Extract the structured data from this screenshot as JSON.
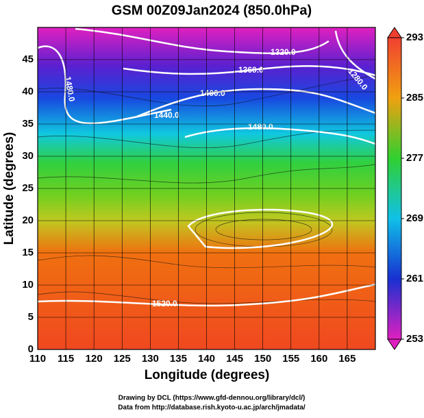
{
  "title": "GSM 00Z09Jan2024 (850.0hPa)",
  "x_axis": {
    "label": "Longitude (degrees)",
    "lim": [
      110,
      170
    ],
    "ticks": [
      110,
      115,
      120,
      125,
      130,
      135,
      140,
      145,
      150,
      155,
      160,
      165
    ]
  },
  "y_axis": {
    "label": "Latitude  (degrees)",
    "lim": [
      0,
      50
    ],
    "ticks": [
      0,
      5,
      10,
      15,
      20,
      25,
      30,
      35,
      40,
      45
    ]
  },
  "colorbar": {
    "lim": [
      253,
      293
    ],
    "ticks": [
      253,
      261,
      269,
      277,
      285,
      293
    ]
  },
  "contour_labels": [
    "1320.0",
    "1360.0",
    "1400.0",
    "1440.0",
    "1480.0",
    "1480.0",
    "1280.0",
    "1520.0"
  ],
  "credits": [
    "Drawing by DCL (https://www.gfd-dennou.org/library/dcl/)",
    "Data from http://database.rish.kyoto-u.ac.jp/arch/jmadata/"
  ]
}
